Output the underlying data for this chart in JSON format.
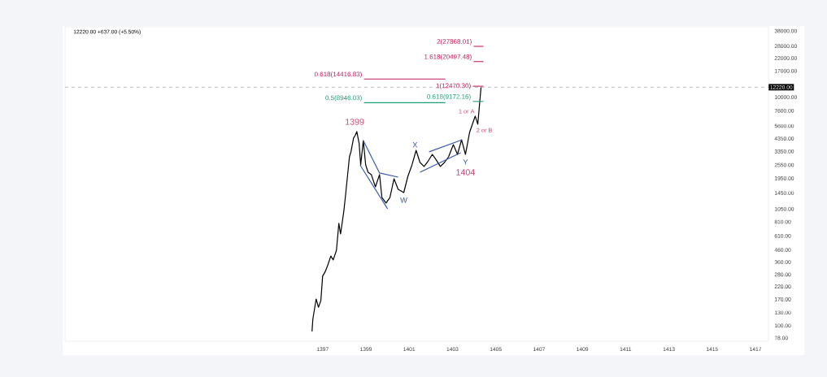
{
  "chart_data": {
    "type": "line",
    "title": "12220.00  +637.00 (+5.50%)",
    "log": "y",
    "xlim": [
      1385.1,
      1417.6
    ],
    "ylim": [
      73,
      41300
    ],
    "xticks": [
      1397,
      1399,
      1401,
      1403,
      1405,
      1407,
      1409,
      1411,
      1413,
      1415,
      1417
    ],
    "yticks": [
      {
        "value": 78,
        "label": "78.00"
      },
      {
        "value": 100,
        "label": "100.00"
      },
      {
        "value": 130,
        "label": "130.00"
      },
      {
        "value": 170,
        "label": "170.00"
      },
      {
        "value": 220,
        "label": "220.00"
      },
      {
        "value": 280,
        "label": "280.00"
      },
      {
        "value": 360,
        "label": "360.00"
      },
      {
        "value": 460,
        "label": "460.00"
      },
      {
        "value": 610,
        "label": "610.00"
      },
      {
        "value": 810,
        "label": "810.00"
      },
      {
        "value": 1050,
        "label": "1050.00"
      },
      {
        "value": 1450,
        "label": "1450.00"
      },
      {
        "value": 1950,
        "label": "1950.00"
      },
      {
        "value": 2550,
        "label": "2550.00"
      },
      {
        "value": 3350,
        "label": "3350.00"
      },
      {
        "value": 4350,
        "label": "4350.00"
      },
      {
        "value": 5600,
        "label": "5600.00"
      },
      {
        "value": 7600,
        "label": "7600.00"
      },
      {
        "value": 10000,
        "label": "10000.00"
      },
      {
        "value": 17000,
        "label": "17000.00"
      },
      {
        "value": 22000,
        "label": "22000.00"
      },
      {
        "value": 28000,
        "label": "28000.00"
      },
      {
        "value": 38000,
        "label": "38000.00"
      }
    ],
    "series": [
      {
        "color": "#000000",
        "x": [
          1396.51,
          1396.55,
          1396.7,
          1396.81,
          1396.92,
          1397.0,
          1397.11,
          1397.23,
          1397.38,
          1397.49,
          1397.64,
          1397.75,
          1397.83,
          1397.98,
          1398.05,
          1398.24,
          1398.31,
          1398.43,
          1398.5,
          1398.58,
          1398.69,
          1398.76,
          1398.88,
          1398.99,
          1399.1,
          1399.25,
          1399.44,
          1399.63,
          1399.74,
          1399.93,
          1400.11,
          1400.3,
          1400.49,
          1400.75,
          1400.94,
          1401.13,
          1401.32,
          1401.5,
          1401.69,
          1401.88,
          1402.07,
          1402.25,
          1402.44,
          1402.63,
          1402.82,
          1403.04,
          1403.23,
          1403.42,
          1403.6,
          1403.79,
          1404.05,
          1404.17,
          1404.32
        ],
        "values": [
          89,
          114,
          171,
          145,
          166,
          271,
          294,
          335,
          407,
          376,
          457,
          785,
          634,
          1005,
          1324,
          3006,
          3319,
          4385,
          4603,
          5000,
          3908,
          2553,
          4169,
          2553,
          2203,
          2099,
          1641,
          2099,
          1324,
          1183,
          1324,
          1932,
          1563,
          1462,
          2028,
          2553,
          3428,
          2679,
          2472,
          2767,
          3155,
          2818,
          2472,
          2679,
          3006,
          3846,
          3155,
          4236,
          3155,
          4909,
          6823,
          5794,
          12220
        ]
      },
      {
        "name": "0.618(14416.83)",
        "color": "#c2185b",
        "x": [
          1398.91,
          1402.67
        ],
        "values": [
          14416.83,
          14416.83
        ]
      },
      {
        "name": "0.5(8946.03)",
        "color": "#1e9e72",
        "x": [
          1398.91,
          1402.67
        ],
        "values": [
          8946.03,
          8946.03
        ]
      },
      {
        "name": "1(12470.30)",
        "color": "#c2185b",
        "x": [
          1403.94,
          1404.43
        ],
        "values": [
          12470.3,
          12470.3
        ]
      },
      {
        "name": "0.618(9172.16)",
        "color": "#1e9e72",
        "x": [
          1403.94,
          1404.43
        ],
        "values": [
          9172.16,
          9172.16
        ]
      },
      {
        "name": "1.618(20497.48)",
        "color": "#c2185b",
        "x": [
          1403.98,
          1404.43
        ],
        "values": [
          20497.48,
          20497.48
        ]
      },
      {
        "name": "2(27868.01)",
        "color": "#c2185b",
        "x": [
          1403.98,
          1404.43
        ],
        "values": [
          27868.01,
          27868.01
        ]
      },
      {
        "color": "#3a58a8",
        "x": [
          1398.88,
          1399.63,
          1400.49
        ],
        "values": [
          4169,
          2168,
          1996
        ]
      },
      {
        "color": "#3a58a8",
        "x": [
          1398.73,
          1400.0
        ],
        "values": [
          2553,
          1054
        ]
      },
      {
        "color": "#3a58a8",
        "x": [
          1401.5,
          1403.38
        ],
        "values": [
          2203,
          3266
        ]
      },
      {
        "color": "#3a58a8",
        "x": [
          1401.92,
          1403.45
        ],
        "values": [
          3319,
          4236
        ]
      }
    ],
    "ref_lines": [
      {
        "axis": "y",
        "value": 12220,
        "label": "12220.00",
        "color": "#9e9e9e",
        "line_style": "dashed"
      }
    ],
    "annotations": [
      {
        "text": "1399",
        "x": 1398.58,
        "y": 5000
      },
      {
        "text": "1404",
        "x": 1403.6,
        "y": 3155
      },
      {
        "text": "1 or A",
        "x": 1404.05,
        "y": 6823
      },
      {
        "text": "2 or B",
        "x": 1404.17,
        "y": 5794
      },
      {
        "text": "W",
        "x": 1400.75,
        "y": 1462
      },
      {
        "text": "X",
        "x": 1401.32,
        "y": 3428
      },
      {
        "text": "Y",
        "x": 1403.6,
        "y": 3155
      }
    ]
  }
}
